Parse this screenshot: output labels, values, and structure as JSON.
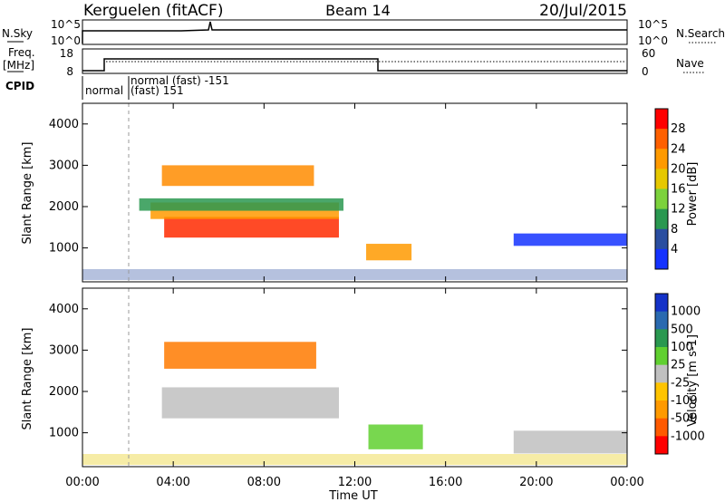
{
  "header": {
    "station": "Kerguelen (fitACF)",
    "beam": "Beam 14",
    "date": "20/Jul/2015"
  },
  "strip_labels": {
    "nsky": "N.Sky",
    "nsearch": "N.Search",
    "freq_1": "Freq.",
    "freq_2": "[MHz]",
    "nave": "Nave",
    "cpid": "CPID",
    "nsky_ticks": [
      "10^5",
      "10^0"
    ],
    "nsearch_ticks": [
      "10^5",
      "10^0"
    ],
    "freq_ticks": [
      "18",
      "8"
    ],
    "nave_ticks": [
      "60",
      "0"
    ]
  },
  "cpid_labels": {
    "normal": "normal",
    "normal_fast": "normal (fast) -151",
    "fast": "(fast) 151"
  },
  "x_axis": {
    "label": "Time UT",
    "ticks": [
      "00:00",
      "04:00",
      "08:00",
      "12:00",
      "16:00",
      "20:00",
      "00:00"
    ]
  },
  "chart_data": [
    {
      "type": "heatmap",
      "title": "",
      "ylabel": "Slant Range [km]",
      "ylim": [
        180,
        4500
      ],
      "yticks": [
        "1000",
        "2000",
        "3000",
        "4000"
      ],
      "xlim": [
        0,
        24
      ],
      "colorbar_label": "Power [dB]",
      "colorbar_ticks": [
        "28",
        "24",
        "20",
        "16",
        "12",
        "8",
        "4"
      ],
      "colorbar_colors": [
        "#ff0000",
        "#ff6000",
        "#ff9a00",
        "#e6c800",
        "#7cd23c",
        "#2a9850",
        "#2a4ea0",
        "#1432ff"
      ],
      "features": [
        {
          "t0": 3.6,
          "t1": 11.3,
          "r0": 1250,
          "r1": 1750,
          "color": "#ff2a00"
        },
        {
          "t0": 3.0,
          "t1": 11.3,
          "r0": 1700,
          "r1": 2100,
          "color": "#ff9a00"
        },
        {
          "t0": 3.5,
          "t1": 10.2,
          "r0": 2500,
          "r1": 3000,
          "color": "#ff8c00"
        },
        {
          "t0": 2.5,
          "t1": 11.5,
          "r0": 1900,
          "r1": 2200,
          "color": "#2a9850"
        },
        {
          "t0": 12.5,
          "t1": 14.5,
          "r0": 700,
          "r1": 1100,
          "color": "#ff9a00"
        },
        {
          "t0": 19.0,
          "t1": 24.0,
          "r0": 1050,
          "r1": 1350,
          "color": "#1432ff"
        }
      ]
    },
    {
      "type": "heatmap",
      "title": "",
      "ylabel": "Slant Range [km]",
      "ylim": [
        180,
        4500
      ],
      "yticks": [
        "1000",
        "2000",
        "3000",
        "4000"
      ],
      "xlim": [
        0,
        24
      ],
      "colorbar_label": "Velocity [m s-1]",
      "colorbar_ticks": [
        "1000",
        "500",
        "100",
        "25",
        "-25",
        "-100",
        "-500",
        "-1000"
      ],
      "colorbar_colors": [
        "#1432c8",
        "#2a6ab0",
        "#2a9850",
        "#60d030",
        "#c0c0c0",
        "#ffc400",
        "#ff9a00",
        "#ff5a00",
        "#ff0000"
      ],
      "features": [
        {
          "t0": 3.5,
          "t1": 11.3,
          "r0": 1350,
          "r1": 2100,
          "color": "#c0c0c0"
        },
        {
          "t0": 3.6,
          "t1": 10.3,
          "r0": 2550,
          "r1": 3200,
          "color": "#ff7a00"
        },
        {
          "t0": 12.6,
          "t1": 15.0,
          "r0": 600,
          "r1": 1200,
          "color": "#60d030"
        },
        {
          "t0": 19.0,
          "t1": 24.0,
          "r0": 500,
          "r1": 1050,
          "color": "#c0c0c0"
        }
      ]
    }
  ]
}
